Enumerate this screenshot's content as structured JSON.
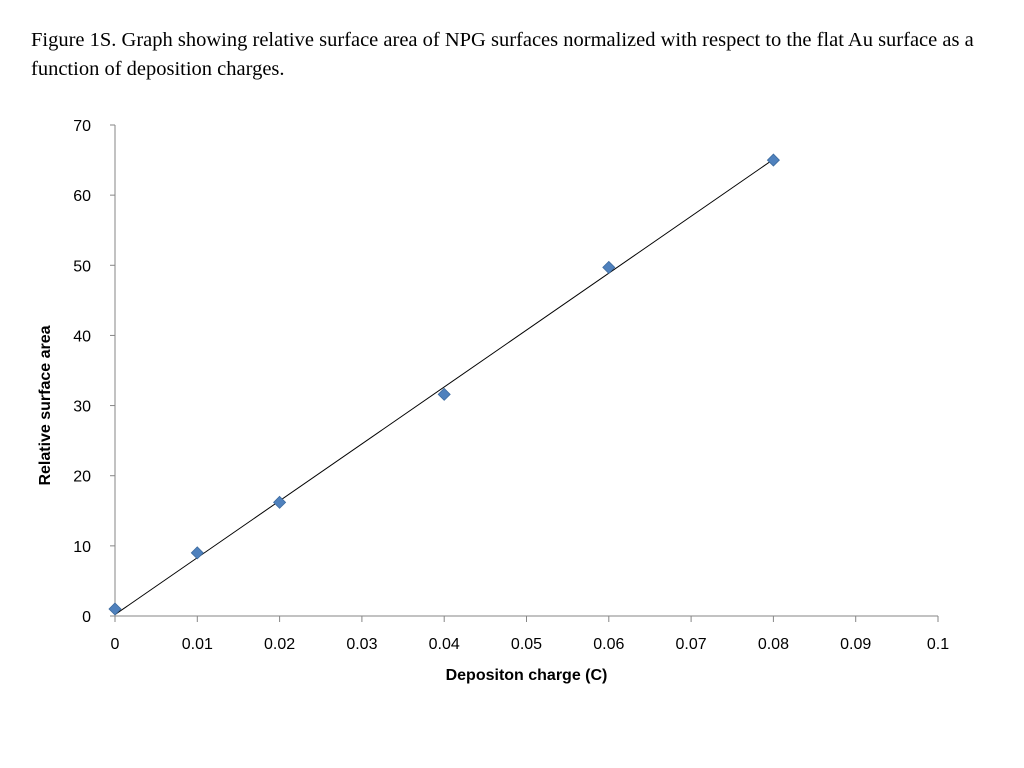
{
  "caption": "Figure 1S. Graph showing relative surface area of NPG surfaces normalized with respect to the flat Au surface as a function of deposition charges.",
  "chart_data": {
    "type": "scatter",
    "xlabel": "Depositon charge (C)",
    "ylabel": "Relative surface area",
    "xlim": [
      0,
      0.1
    ],
    "ylim": [
      0,
      70
    ],
    "xticks": [
      "0",
      "0.01",
      "0.02",
      "0.03",
      "0.04",
      "0.05",
      "0.06",
      "0.07",
      "0.08",
      "0.09",
      "0.1"
    ],
    "yticks": [
      "0",
      "10",
      "20",
      "30",
      "40",
      "50",
      "60",
      "70"
    ],
    "grid": false,
    "legend": "none",
    "marker": "diamond",
    "marker_color": "#4f81bd",
    "series": [
      {
        "x": [
          0,
          0.01,
          0.02,
          0.04,
          0.06,
          0.08
        ],
        "y": [
          1.0,
          9.0,
          16.2,
          31.6,
          49.7,
          65.0
        ]
      }
    ],
    "trendline": {
      "type": "linear",
      "color": "#000000",
      "x": [
        0,
        0.08
      ],
      "y": [
        0.2,
        65.1
      ]
    }
  }
}
